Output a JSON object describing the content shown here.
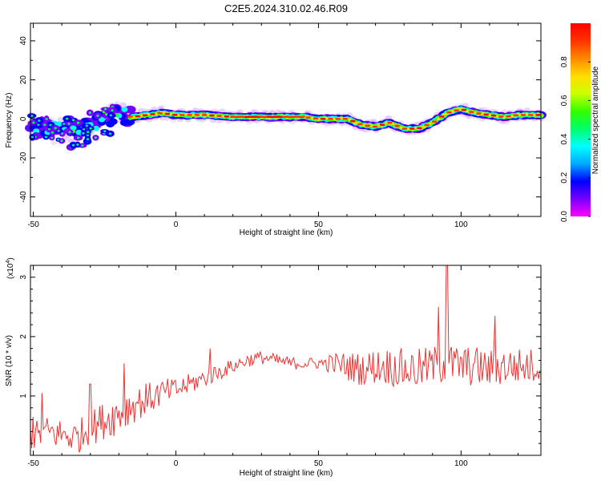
{
  "title": "C2E5.2024.310.02.46.R09",
  "chart_data": [
    {
      "type": "heatmap",
      "xlabel": "Height of straight line (km)",
      "ylabel": "Frequency (Hz)",
      "xlim": [
        -51,
        128
      ],
      "ylim": [
        -50,
        49
      ],
      "x_ticks": [
        -50,
        0,
        50,
        100
      ],
      "y_ticks": [
        40,
        20,
        0,
        -20,
        -40
      ],
      "colorbar": {
        "label": "Normalized spectral amplitude",
        "range": [
          0,
          1
        ],
        "ticks": [
          0.0,
          0.2,
          0.4,
          0.6,
          0.8
        ],
        "tick_labels": [
          "0.0",
          "0.2",
          "0.4",
          "0.6",
          "0.8"
        ]
      },
      "ridge_frequency": {
        "x": [
          -51,
          -45,
          -40,
          -35,
          -30,
          -25,
          -20,
          -15,
          -10,
          -5,
          0,
          10,
          20,
          30,
          40,
          45,
          50,
          55,
          60,
          65,
          70,
          75,
          80,
          85,
          90,
          95,
          100,
          105,
          110,
          115,
          120,
          128
        ],
        "y": [
          -4,
          -6,
          -6,
          -5,
          -3,
          0,
          2,
          1,
          2,
          3,
          2,
          2,
          1,
          1,
          1,
          1,
          0,
          0,
          0,
          -3,
          -4,
          -2,
          -5,
          -5,
          -2,
          3,
          5,
          3,
          2,
          1,
          2,
          2
        ]
      },
      "colors": [
        "#ff00ff",
        "#7700ff",
        "#0000ff",
        "#00aaff",
        "#00ffff",
        "#00ff66",
        "#33ff00",
        "#ccff00",
        "#ffdd00",
        "#ff8800",
        "#ff3300",
        "#ff0000"
      ]
    },
    {
      "type": "line",
      "xlabel": "Height of straight line (km)",
      "ylabel": "SNR (10 * v/v)",
      "multiplier_label": "(x10",
      "multiplier_exp": "4",
      "multiplier_close": ")",
      "xlim": [
        -51,
        128
      ],
      "ylim": [
        0,
        3.2
      ],
      "x_ticks": [
        -50,
        0,
        50,
        100
      ],
      "y_ticks": [
        1,
        2,
        3
      ],
      "series_color": "#ee3333",
      "trend": {
        "x": [
          -51,
          -45,
          -40,
          -35,
          -30,
          -25,
          -20,
          -15,
          -10,
          -5,
          0,
          5,
          10,
          15,
          20,
          25,
          30,
          35,
          40,
          45,
          50,
          55,
          60,
          65,
          70,
          75,
          80,
          85,
          90,
          95,
          100,
          105,
          110,
          115,
          120,
          128
        ],
        "y": [
          0.3,
          0.4,
          0.35,
          0.3,
          0.45,
          0.6,
          0.7,
          0.85,
          0.95,
          1.05,
          1.1,
          1.2,
          1.3,
          1.4,
          1.5,
          1.6,
          1.65,
          1.6,
          1.55,
          1.55,
          1.55,
          1.55,
          1.5,
          1.45,
          1.5,
          1.5,
          1.45,
          1.45,
          1.5,
          1.55,
          1.5,
          1.5,
          1.45,
          1.5,
          1.5,
          1.5
        ]
      },
      "noise": {
        "x": [
          -51,
          -30,
          -20,
          0,
          20,
          50,
          60,
          80,
          100,
          128
        ],
        "y": [
          0.25,
          0.3,
          0.35,
          0.2,
          0.12,
          0.1,
          0.25,
          0.35,
          0.35,
          0.3
        ]
      },
      "peaks": {
        "x": [
          -50,
          -47,
          -30,
          -18,
          12,
          92,
          95,
          112
        ],
        "y": [
          0.65,
          1.05,
          1.2,
          1.55,
          1.8,
          2.5,
          3.2,
          2.35
        ]
      }
    }
  ]
}
